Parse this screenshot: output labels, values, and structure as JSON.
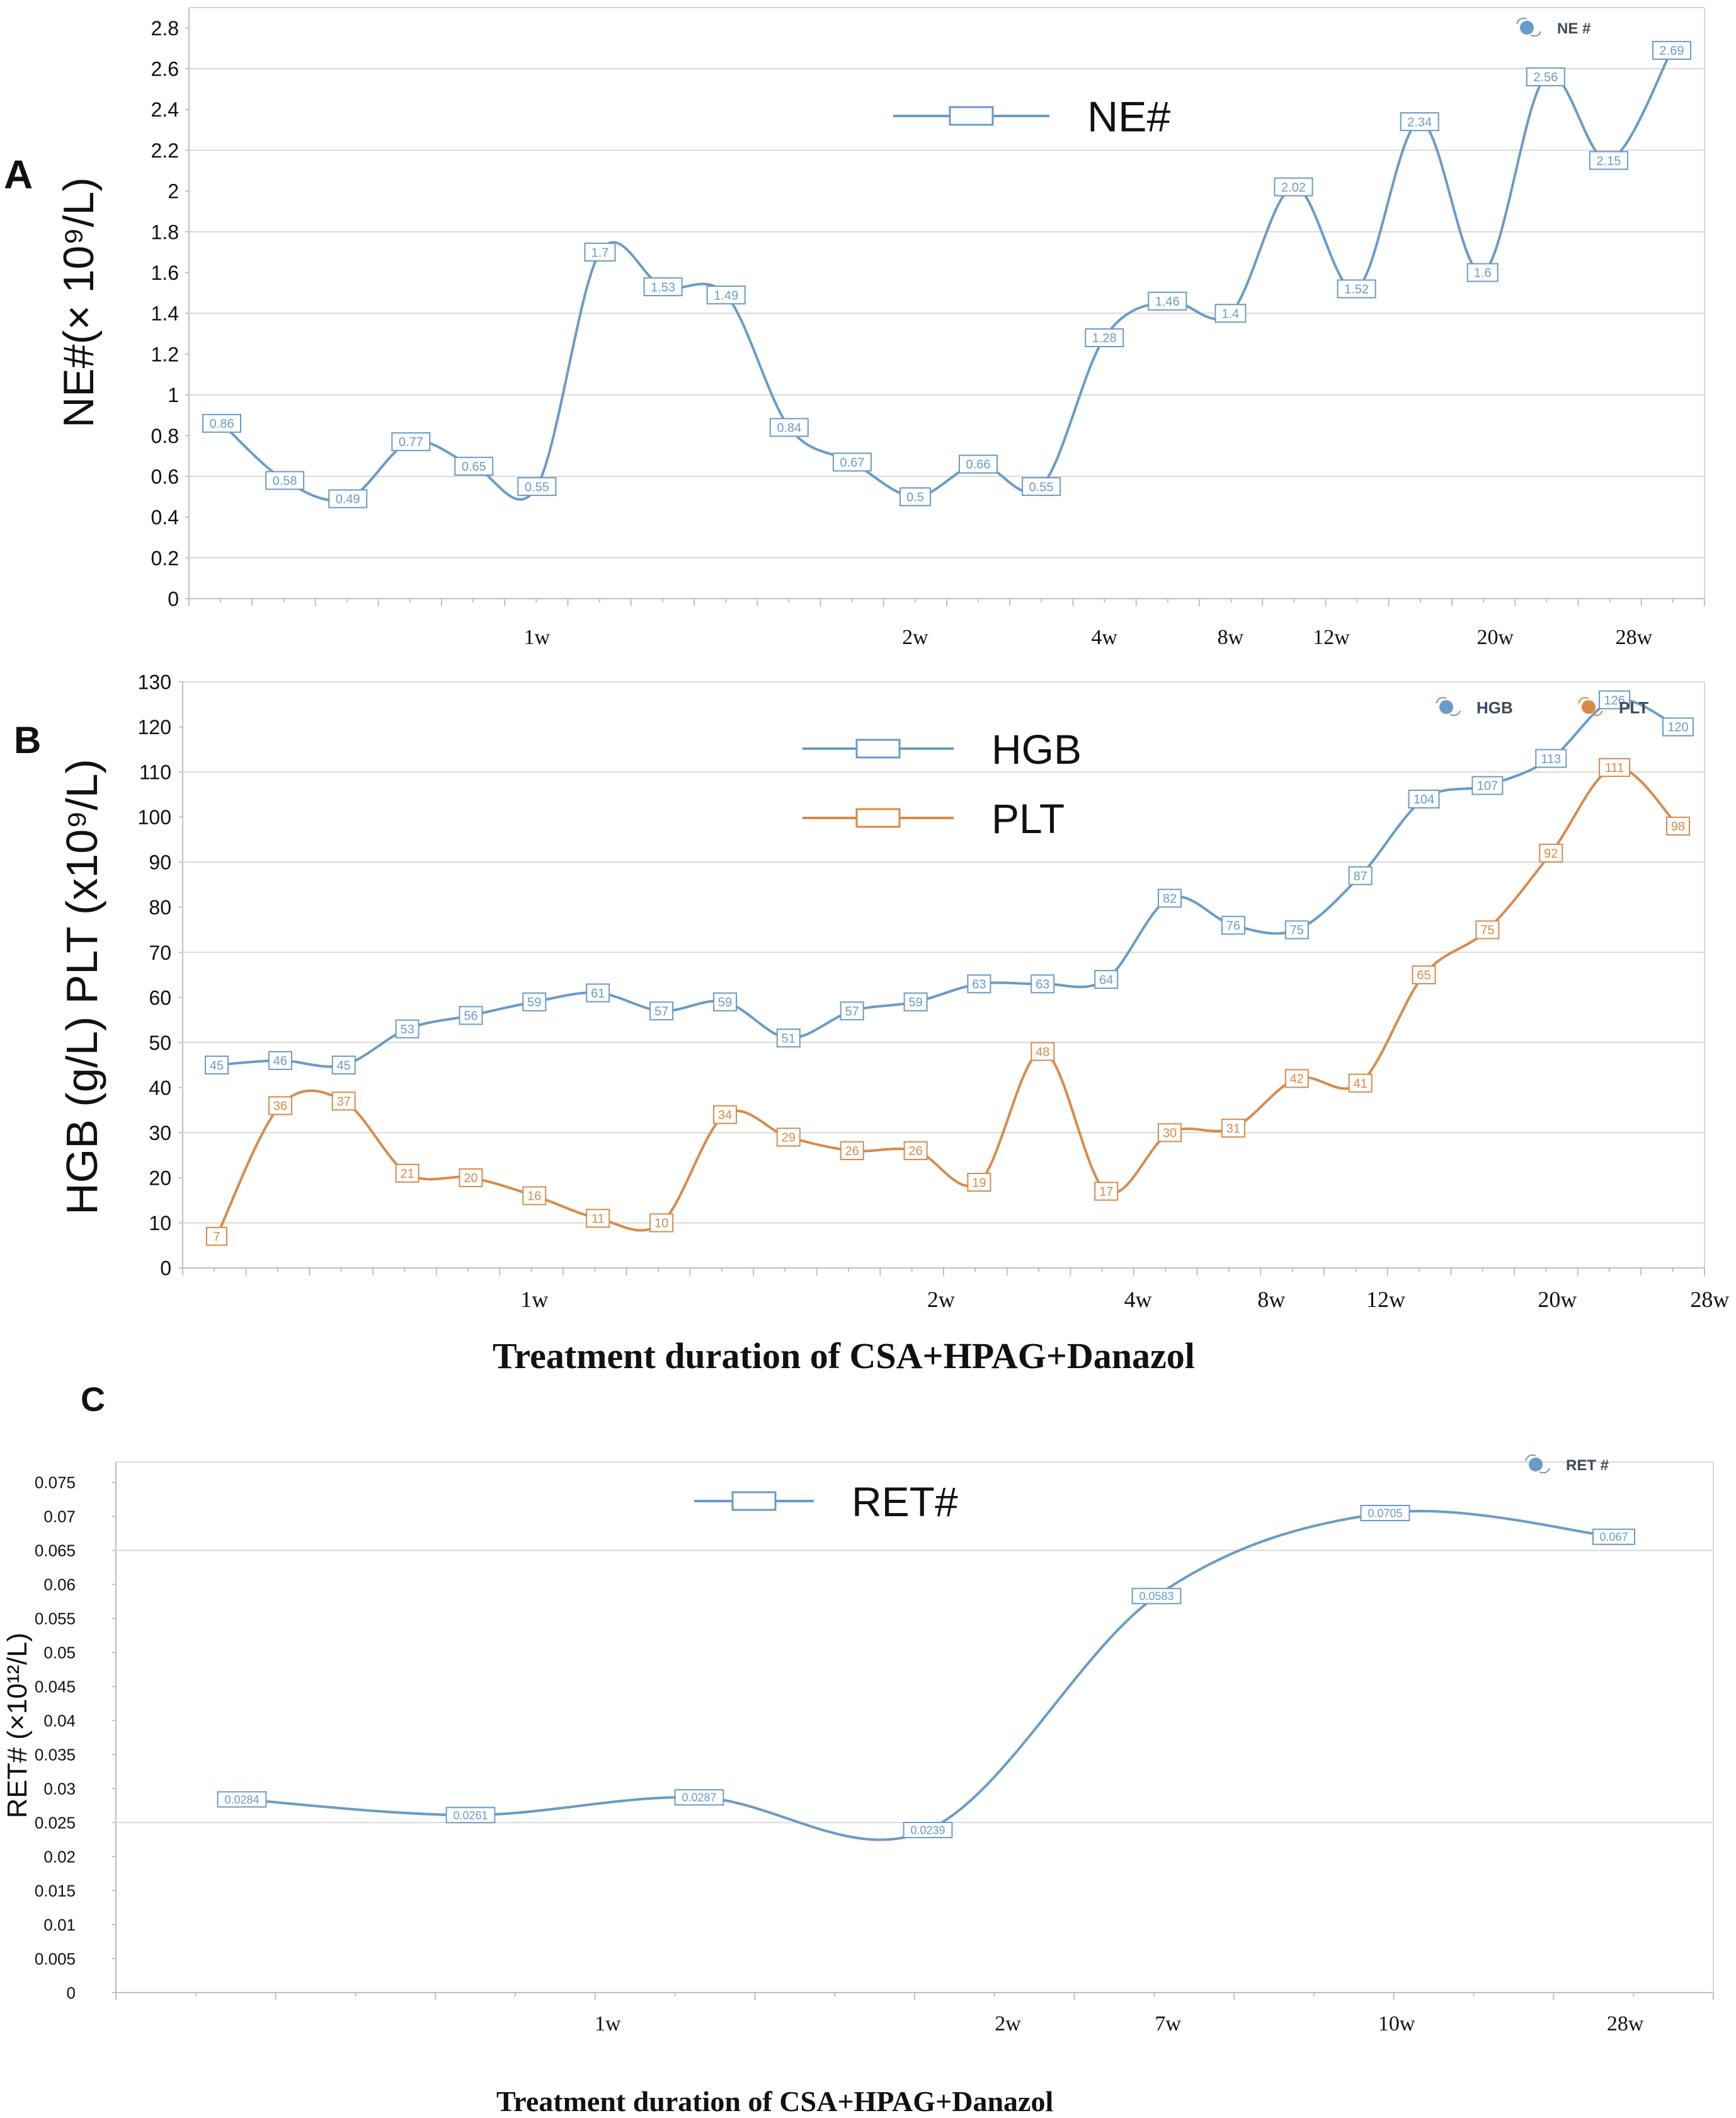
{
  "colors": {
    "blue": "#6a9bc8",
    "orange": "#d88a4a",
    "grid": "#d9d9d9",
    "axis": "#bfbfbf",
    "text": "#111111"
  },
  "panels": {
    "a": {
      "letter": "A"
    },
    "b": {
      "letter": "B",
      "x_title": "Treatment duration of  CSA+HPAG+Danazol"
    },
    "c": {
      "letter": "C",
      "x_title": "Treatment duration of  CSA+HPAG+Danazol"
    }
  },
  "chart_data": [
    {
      "id": "A",
      "type": "line",
      "ylabel": "NE#(× 10⁹/L)",
      "ylim": [
        0,
        2.9
      ],
      "yticks": [
        "0",
        "0.2",
        "0.4",
        "0.6",
        "0.8",
        "1",
        "1.2",
        "1.4",
        "1.6",
        "1.8",
        "2",
        "2.2",
        "2.4",
        "2.6",
        "2.8"
      ],
      "x_count": 24,
      "x_labels": [
        {
          "i": 5,
          "label": "1w"
        },
        {
          "i": 11,
          "label": "2w"
        },
        {
          "i": 14,
          "label": "4w"
        },
        {
          "i": 16,
          "label": "8w"
        },
        {
          "i": 17.6,
          "label": "12w"
        },
        {
          "i": 20.2,
          "label": "20w"
        },
        {
          "i": 22.4,
          "label": "28w"
        }
      ],
      "inner_legend": [
        {
          "series": "NE#",
          "label": "NE#"
        }
      ],
      "corner_legend": [
        {
          "series": "NE#",
          "label": "NE #"
        }
      ],
      "series": [
        {
          "name": "NE#",
          "color": "#6a9bc8",
          "labels": [
            "0.86",
            "0.58",
            "0.49",
            "0.77",
            "0.65",
            "0.55",
            "1.7",
            "1.53",
            "1.49",
            "0.84",
            "0.67",
            "0.5",
            "0.66",
            "0.55",
            "1.28",
            "1.46",
            "1.4",
            "2.02",
            "1.52",
            "2.34",
            "1.6",
            "2.56",
            "2.15",
            "2.69"
          ],
          "values": [
            0.86,
            0.58,
            0.49,
            0.77,
            0.65,
            0.55,
            1.7,
            1.53,
            1.49,
            0.84,
            0.67,
            0.5,
            0.66,
            0.55,
            1.28,
            1.46,
            1.4,
            2.02,
            1.52,
            2.34,
            1.6,
            2.56,
            2.15,
            2.69
          ]
        }
      ]
    },
    {
      "id": "B",
      "type": "line",
      "ylabel": "HGB (g/L)  PLT (x10⁹/L)",
      "ylim": [
        0,
        130
      ],
      "yticks": [
        "0",
        "10",
        "20",
        "30",
        "40",
        "50",
        "60",
        "70",
        "80",
        "90",
        "100",
        "110",
        "120",
        "130"
      ],
      "x_count": 24,
      "x_labels": [
        {
          "i": 5,
          "label": "1w"
        },
        {
          "i": 11.4,
          "label": "2w"
        },
        {
          "i": 14.5,
          "label": "4w"
        },
        {
          "i": 16.6,
          "label": "8w"
        },
        {
          "i": 18.4,
          "label": "12w"
        },
        {
          "i": 21.1,
          "label": "20w"
        },
        {
          "i": 23.5,
          "label": "28w"
        }
      ],
      "inner_legend": [
        {
          "series": "HGB",
          "label": "HGB"
        },
        {
          "series": "PLT",
          "label": "PLT"
        }
      ],
      "corner_legend": [
        {
          "series": "HGB",
          "label": "HGB"
        },
        {
          "series": "PLT",
          "label": "PLT"
        }
      ],
      "series": [
        {
          "name": "HGB",
          "color": "#6a9bc8",
          "labels": [
            "45",
            "46",
            "45",
            "53",
            "56",
            "59",
            "61",
            "57",
            "59",
            "51",
            "57",
            "59",
            "63",
            "63",
            "64",
            "82",
            "76",
            "75",
            "87",
            "104",
            "107",
            "113",
            "126",
            "120"
          ],
          "values": [
            45,
            46,
            45,
            53,
            56,
            59,
            61,
            57,
            59,
            51,
            57,
            59,
            63,
            63,
            64,
            82,
            76,
            75,
            87,
            104,
            107,
            113,
            126,
            120
          ]
        },
        {
          "name": "PLT",
          "color": "#d88a4a",
          "labels": [
            "7",
            "36",
            "37",
            "21",
            "20",
            "16",
            "11",
            "10",
            "34",
            "29",
            "26",
            "26",
            "19",
            "48",
            "17",
            "30",
            "31",
            "42",
            "41",
            "65",
            "75",
            "92",
            "111",
            "98"
          ],
          "values": [
            7,
            36,
            37,
            21,
            20,
            16,
            11,
            10,
            34,
            29,
            26,
            26,
            19,
            48,
            17,
            30,
            31,
            42,
            41,
            65,
            75,
            92,
            111,
            98
          ]
        }
      ]
    },
    {
      "id": "C",
      "type": "line",
      "ylabel": "RET# (×10¹²/L)",
      "ylim": [
        0,
        0.078
      ],
      "yticks": [
        "0",
        "0.005",
        "0.01",
        "0.015",
        "0.02",
        "0.025",
        "0.03",
        "0.035",
        "0.04",
        "0.045",
        "0.05",
        "0.055",
        "0.06",
        "0.065",
        "0.07",
        "0.075"
      ],
      "x_count": 7,
      "x_labels": [
        {
          "i": 1.6,
          "label": "1w"
        },
        {
          "i": 3.35,
          "label": "2w"
        },
        {
          "i": 4.05,
          "label": "7w"
        },
        {
          "i": 5.05,
          "label": "10w"
        },
        {
          "i": 6.05,
          "label": "28w"
        }
      ],
      "inner_legend": [
        {
          "series": "RET#",
          "label": "RET#"
        }
      ],
      "corner_legend": [
        {
          "series": "RET#",
          "label": "RET #"
        }
      ],
      "series": [
        {
          "name": "RET#",
          "color": "#6a9bc8",
          "labels": [
            "0.0284",
            "0.0261",
            "0.0287",
            "0.0239",
            "0.0583",
            "0.0705",
            "0.067"
          ],
          "values": [
            0.0284,
            0.0261,
            0.0287,
            0.0239,
            0.0583,
            0.0705,
            0.067
          ]
        }
      ]
    }
  ]
}
